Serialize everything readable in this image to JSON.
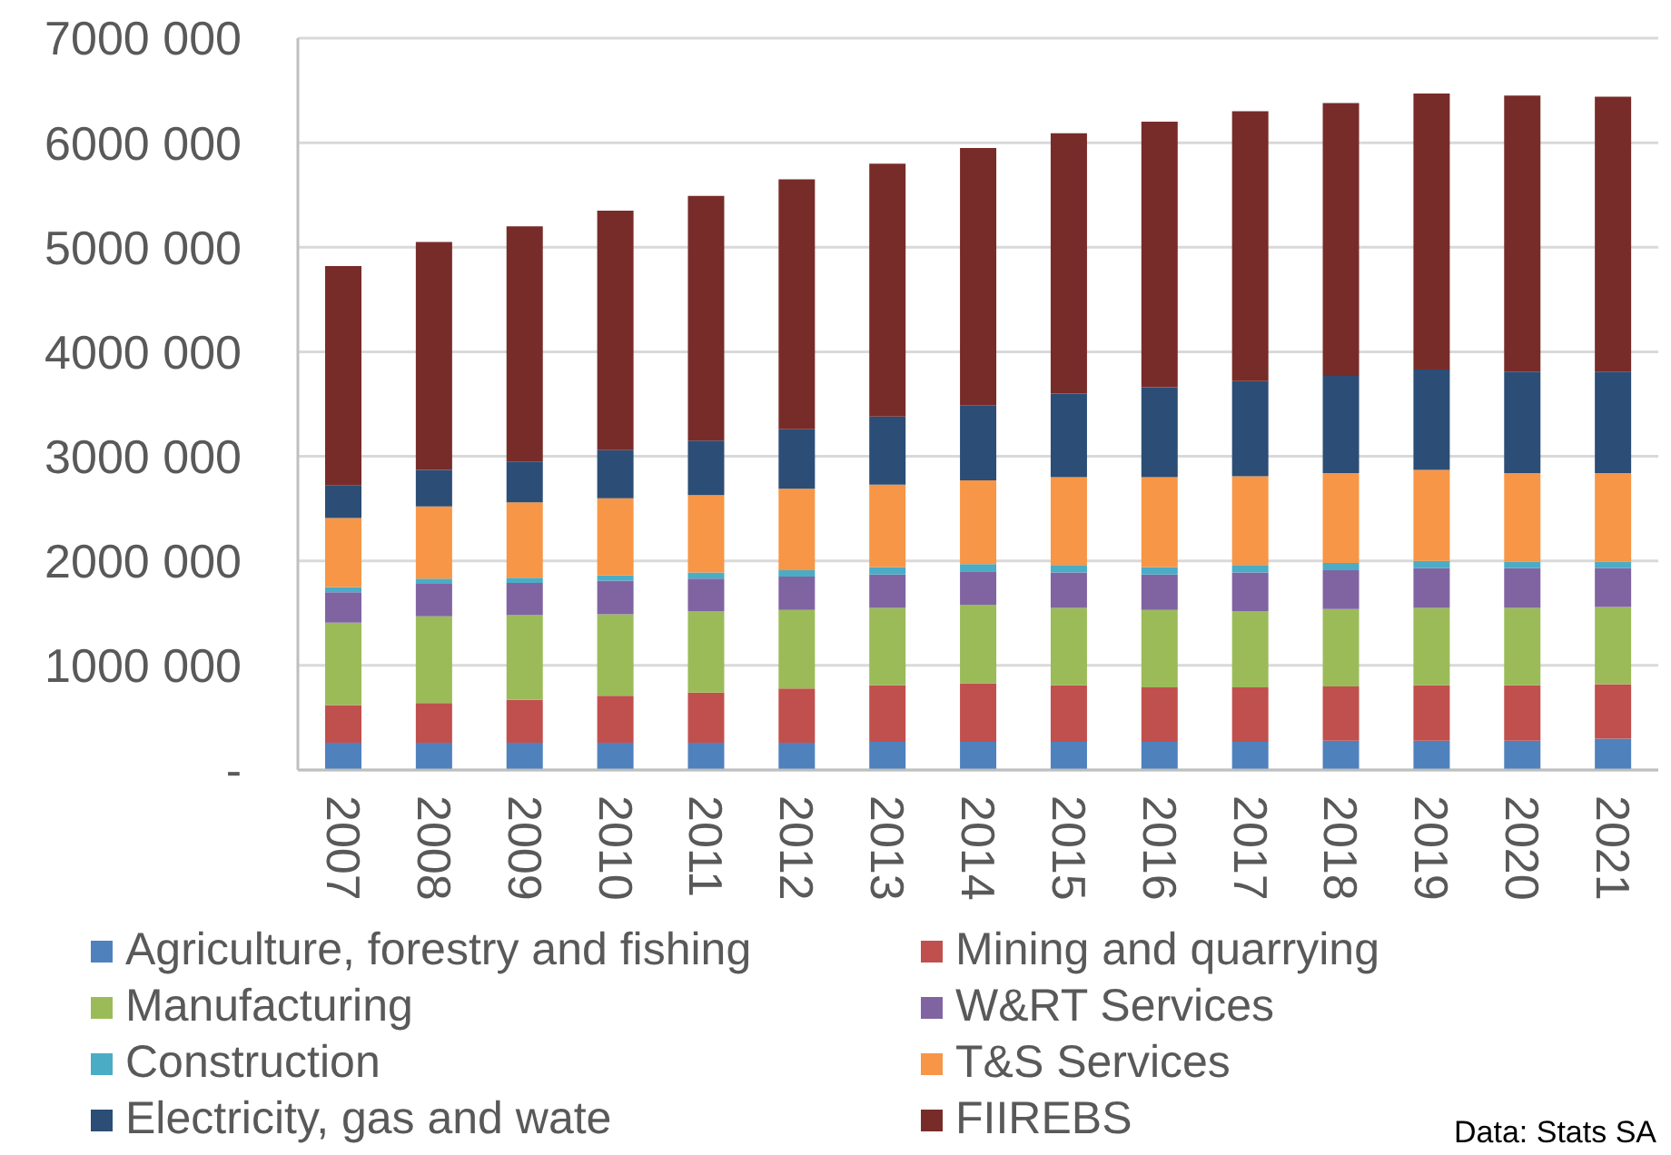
{
  "chart_data": {
    "type": "bar",
    "stacked": true,
    "categories": [
      "2007",
      "2008",
      "2009",
      "2010",
      "2011",
      "2012",
      "2013",
      "2014",
      "2015",
      "2016",
      "2017",
      "2018",
      "2019",
      "2020",
      "2021"
    ],
    "series": [
      {
        "name": "Agriculture, forestry and fishing",
        "color": "#4f81bd",
        "values": [
          260000,
          260000,
          260000,
          260000,
          260000,
          260000,
          270000,
          270000,
          270000,
          270000,
          270000,
          280000,
          280000,
          280000,
          300000
        ]
      },
      {
        "name": "Mining and quarrying",
        "color": "#c0504d",
        "values": [
          360000,
          380000,
          410000,
          450000,
          480000,
          520000,
          540000,
          560000,
          540000,
          520000,
          520000,
          520000,
          530000,
          530000,
          520000
        ]
      },
      {
        "name": "Manufacturing",
        "color": "#9bbb59",
        "values": [
          790000,
          830000,
          810000,
          780000,
          780000,
          750000,
          740000,
          750000,
          740000,
          740000,
          730000,
          740000,
          740000,
          740000,
          740000
        ]
      },
      {
        "name": "W&RT Services",
        "color": "#8064a2",
        "values": [
          290000,
          310000,
          310000,
          320000,
          310000,
          320000,
          320000,
          320000,
          340000,
          340000,
          370000,
          370000,
          380000,
          380000,
          370000
        ]
      },
      {
        "name": "Construction",
        "color": "#4bacc6",
        "values": [
          50000,
          50000,
          50000,
          50000,
          60000,
          60000,
          70000,
          70000,
          70000,
          70000,
          70000,
          70000,
          70000,
          60000,
          60000
        ]
      },
      {
        "name": "T&S Services",
        "color": "#f79646",
        "values": [
          660000,
          690000,
          720000,
          740000,
          740000,
          780000,
          790000,
          800000,
          840000,
          860000,
          850000,
          860000,
          870000,
          850000,
          850000
        ]
      },
      {
        "name": "Electricity, gas and wate",
        "color": "#2c4d75",
        "values": [
          310000,
          350000,
          390000,
          460000,
          520000,
          570000,
          650000,
          720000,
          800000,
          860000,
          910000,
          930000,
          960000,
          970000,
          970000
        ]
      },
      {
        "name": "FIIREBS",
        "color": "#772c2a",
        "values": [
          2100000,
          2180000,
          2250000,
          2290000,
          2340000,
          2390000,
          2420000,
          2460000,
          2490000,
          2540000,
          2580000,
          2610000,
          2640000,
          2640000,
          2630000
        ]
      }
    ],
    "ylim": [
      0,
      7000000
    ],
    "yticks": [
      {
        "value": 0,
        "label": "-"
      },
      {
        "value": 1000000,
        "label": "1000 000"
      },
      {
        "value": 2000000,
        "label": "2000 000"
      },
      {
        "value": 3000000,
        "label": "3000 000"
      },
      {
        "value": 4000000,
        "label": "4000 000"
      },
      {
        "value": 5000000,
        "label": "5000 000"
      },
      {
        "value": 6000000,
        "label": "6000 000"
      },
      {
        "value": 7000000,
        "label": "7000 000"
      }
    ],
    "grid": "y",
    "legend": "bottom",
    "annotations": [
      "Data: Stats SA"
    ]
  }
}
